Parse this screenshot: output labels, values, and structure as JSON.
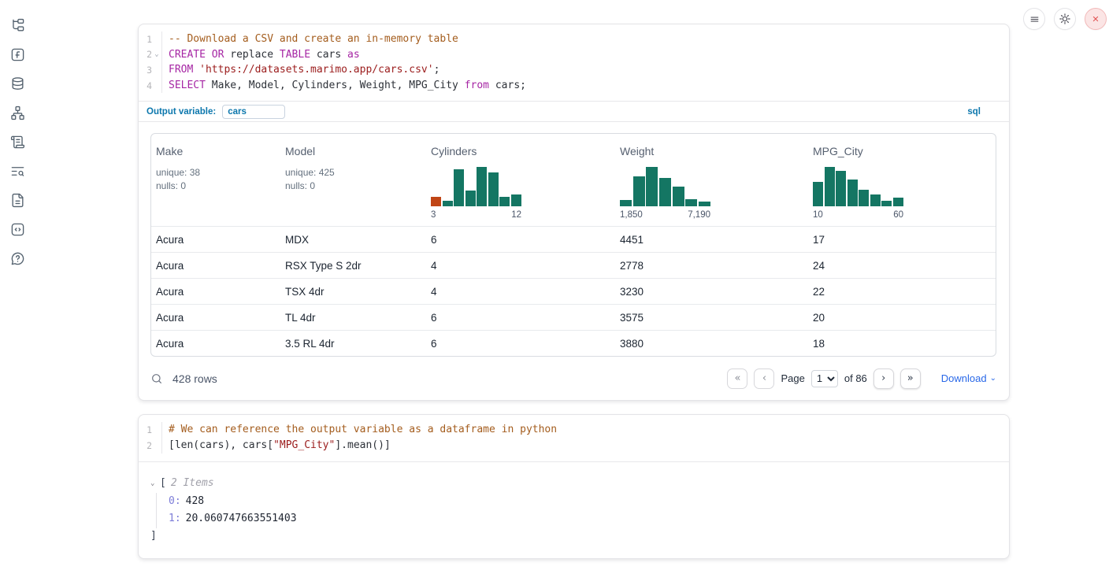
{
  "icons": {
    "fold": "⌄",
    "tree_collapse": "⌄",
    "download_caret": "⌄"
  },
  "colors": {
    "histogram_green": "#147663",
    "histogram_orange": "#c04515",
    "accent_blue": "#0c77ad",
    "link_blue": "#2968e8"
  },
  "sidebar": {
    "icons": [
      "file-tree",
      "function-square",
      "database",
      "dependency-graph",
      "scroll",
      "list-search",
      "document",
      "code-snippets",
      "help"
    ]
  },
  "topbar": {
    "buttons": [
      "menu",
      "settings",
      "close"
    ]
  },
  "sql_cell": {
    "code": [
      {
        "num": "1",
        "tokens": [
          [
            "comment",
            "-- Download a CSV and create an in-memory table"
          ]
        ]
      },
      {
        "num": "2",
        "fold": true,
        "tokens": [
          [
            "keyword",
            "CREATE"
          ],
          [
            "default",
            " "
          ],
          [
            "keyword",
            "OR"
          ],
          [
            "default",
            " replace "
          ],
          [
            "keyword",
            "TABLE"
          ],
          [
            "default",
            " cars "
          ],
          [
            "keyword",
            "as"
          ]
        ]
      },
      {
        "num": "3",
        "tokens": [
          [
            "keyword",
            "FROM"
          ],
          [
            "default",
            " "
          ],
          [
            "string",
            "'https://datasets.marimo.app/cars.csv'"
          ],
          [
            "default",
            ";"
          ]
        ]
      },
      {
        "num": "4",
        "tokens": [
          [
            "keyword",
            "SELECT"
          ],
          [
            "default",
            " Make, Model, Cylinders, Weight, MPG_City "
          ],
          [
            "keyword",
            "from"
          ],
          [
            "default",
            " cars;"
          ]
        ]
      }
    ],
    "output_variable": {
      "label": "Output variable:",
      "value": "cars",
      "language": "sql"
    },
    "table": {
      "columns": [
        {
          "name": "Make",
          "stats": [
            "unique: 38",
            "nulls: 0"
          ]
        },
        {
          "name": "Model",
          "stats": [
            "unique: 425",
            "nulls: 0"
          ]
        },
        {
          "name": "Cylinders",
          "histogram": {
            "bars": [
              0.24,
              0.14,
              0.94,
              0.4,
              1.0,
              0.86,
              0.24,
              0.3
            ],
            "highlight_first": true,
            "min_label": "3",
            "max_label": "12"
          }
        },
        {
          "name": "Weight",
          "histogram": {
            "bars": [
              0.15,
              0.75,
              1.0,
              0.72,
              0.5,
              0.18,
              0.12
            ],
            "highlight_first": false,
            "min_label": "1,850",
            "max_label": "7,190"
          }
        },
        {
          "name": "MPG_City",
          "histogram": {
            "bars": [
              0.62,
              1.0,
              0.9,
              0.68,
              0.42,
              0.3,
              0.13,
              0.22
            ],
            "highlight_first": false,
            "min_label": "10",
            "max_label": "60"
          }
        }
      ],
      "rows": [
        [
          "Acura",
          "MDX",
          "6",
          "4451",
          "17"
        ],
        [
          "Acura",
          "RSX Type S 2dr",
          "4",
          "2778",
          "24"
        ],
        [
          "Acura",
          "TSX 4dr",
          "4",
          "3230",
          "22"
        ],
        [
          "Acura",
          "TL 4dr",
          "6",
          "3575",
          "20"
        ],
        [
          "Acura",
          "3.5 RL 4dr",
          "6",
          "3880",
          "18"
        ]
      ],
      "footer": {
        "row_count": "428 rows",
        "page_label": "Page",
        "page_value": "1",
        "of_label": "of 86",
        "download_label": "Download",
        "pagination": {
          "first": "«",
          "prev": "‹",
          "next": "›",
          "last": "»"
        }
      }
    }
  },
  "python_cell": {
    "code": [
      {
        "num": "1",
        "tokens": [
          [
            "comment",
            "# We can reference the output variable as a dataframe in python"
          ]
        ]
      },
      {
        "num": "2",
        "tokens": [
          [
            "default",
            "[len(cars), cars["
          ],
          [
            "string",
            "\"MPG_City\""
          ],
          [
            "default",
            "].mean()]"
          ]
        ]
      }
    ],
    "output": {
      "open_bracket": "[",
      "items_label": "2 Items",
      "entries": [
        {
          "key": "0:",
          "value": "428"
        },
        {
          "key": "1:",
          "value": "20.060747663551403"
        }
      ],
      "close_bracket": "]"
    }
  }
}
